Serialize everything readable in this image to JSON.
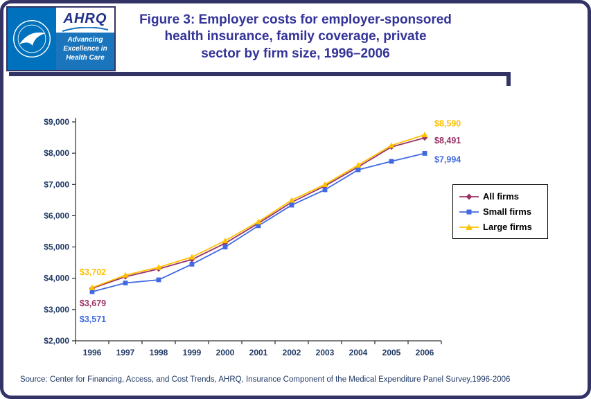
{
  "page": {
    "colors": {
      "border": "#333366",
      "title": "#333399",
      "axis_labels": "#203864",
      "source_text": "#203864",
      "hhs_logo_bg": "#0071BC",
      "ahrq_tagline_bg": "#1B75BC"
    }
  },
  "header": {
    "ahrq_logo": {
      "acronym": "AHRQ",
      "tagline_lines": [
        "Advancing",
        "Excellence in",
        "Health Care"
      ]
    },
    "title_lines": [
      "Figure 3: Employer costs for employer-sponsored",
      "health insurance, family coverage, private",
      "sector by firm size, 1996–2006"
    ]
  },
  "chart_data": {
    "type": "line",
    "title": "Figure 3: Employer costs for employer-sponsored health insurance, family coverage, private sector by firm size, 1996–2006",
    "x_labels": [
      "1996",
      "1997",
      "1998",
      "1999",
      "2000",
      "2001",
      "2002",
      "2003",
      "2004",
      "2005",
      "2006"
    ],
    "series": [
      {
        "name": "All firms",
        "color": "#993366",
        "marker": "diamond",
        "values": [
          3679,
          4050,
          4300,
          4600,
          5120,
          5760,
          6430,
          6950,
          7560,
          8200,
          8491
        ],
        "first_label": "$3,679",
        "last_label": "$8,491"
      },
      {
        "name": "Small firms",
        "color": "#4169E1",
        "marker": "square",
        "values": [
          3571,
          3850,
          3950,
          4450,
          5000,
          5680,
          6340,
          6830,
          7470,
          7740,
          7994
        ],
        "first_label": "$3,571",
        "last_label": "$7,994"
      },
      {
        "name": "Large firms",
        "color": "#FFC000",
        "marker": "triangle",
        "values": [
          3702,
          4100,
          4350,
          4680,
          5200,
          5810,
          6500,
          7000,
          7620,
          8250,
          8590
        ],
        "first_label": "$3,702",
        "last_label": "$8,590"
      }
    ],
    "ylim": [
      2000,
      9000
    ],
    "ytick_step": 1000,
    "ytick_labels": [
      "$2,000",
      "$3,000",
      "$4,000",
      "$5,000",
      "$6,000",
      "$7,000",
      "$8,000",
      "$9,000"
    ],
    "legend_entries": [
      "All firms",
      "Small firms",
      "Large firms"
    ],
    "legend_position": "right",
    "grid": false
  },
  "footer": {
    "source": "Source: Center for Financing, Access, and Cost Trends, AHRQ, Insurance Component of the Medical Expenditure Panel Survey,1996-2006"
  }
}
